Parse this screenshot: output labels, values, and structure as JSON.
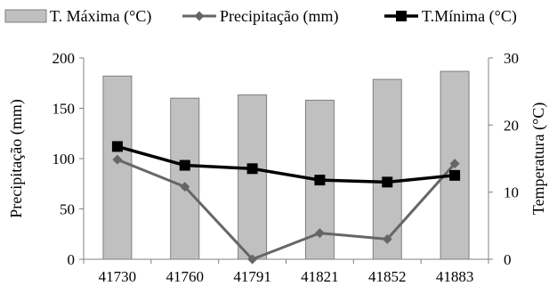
{
  "chart_data": {
    "type": "bar",
    "categories": [
      "41730",
      "41760",
      "41791",
      "41821",
      "41852",
      "41883"
    ],
    "series": [
      {
        "name": "T. Máxima (°C)",
        "type": "bar",
        "axis": "right",
        "values": [
          27.3,
          24.0,
          24.5,
          23.7,
          26.8,
          28.0
        ],
        "color": "#c0c0c0"
      },
      {
        "name": "Precipitação (mm)",
        "type": "line",
        "axis": "left",
        "values": [
          99,
          72,
          0,
          26,
          20,
          95
        ],
        "color": "#666666"
      },
      {
        "name": "T.Mínima (°C)",
        "type": "line",
        "axis": "right",
        "values": [
          16.8,
          14.0,
          13.5,
          11.8,
          11.5,
          12.5
        ],
        "color": "#000000"
      }
    ],
    "ylabel_left": "Precipitação (mm)",
    "ylabel_right": "Temperatura (°C)",
    "ylim_left": [
      0,
      200
    ],
    "ylim_right": [
      0,
      30
    ],
    "yticks_left": [
      "0",
      "50",
      "100",
      "150",
      "200"
    ],
    "yticks_right": [
      "0",
      "10",
      "20",
      "30"
    ],
    "legend_position": "top",
    "grid": false
  }
}
